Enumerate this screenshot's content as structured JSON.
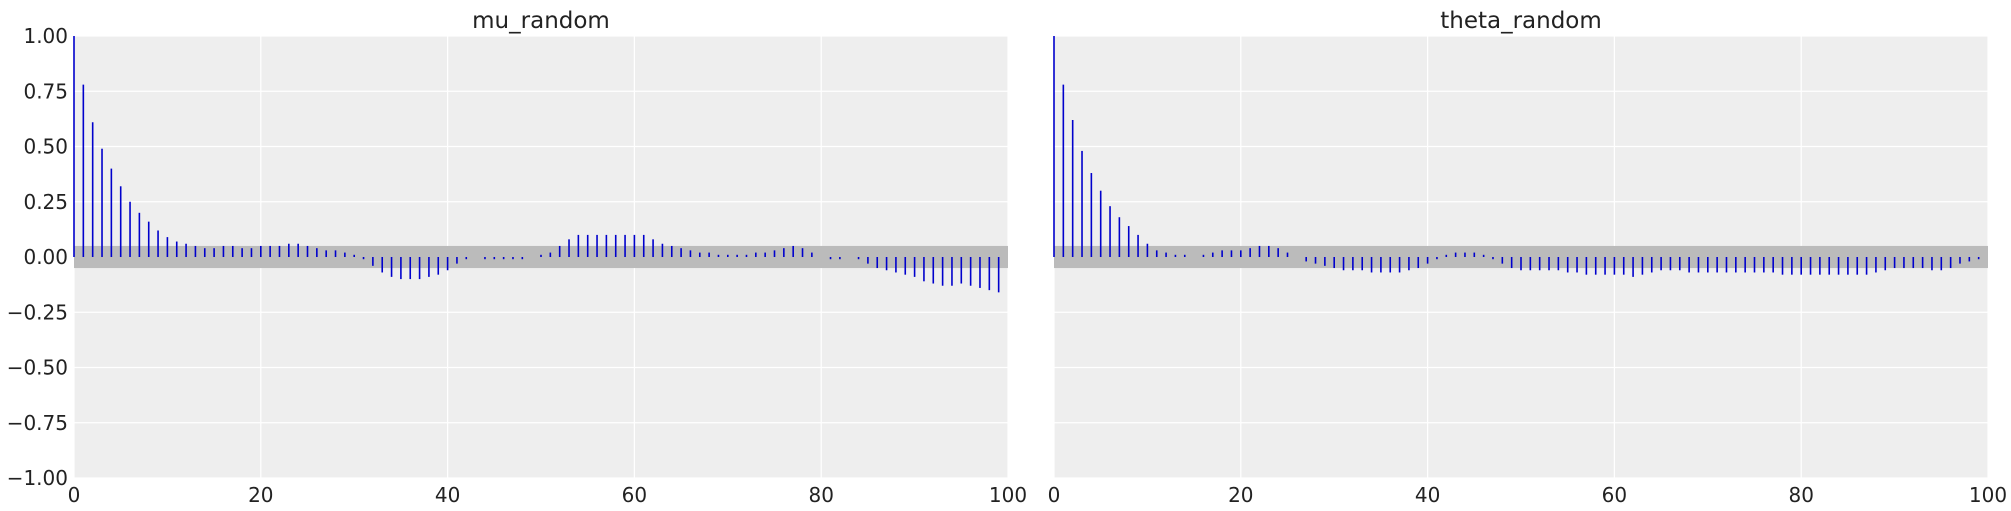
{
  "chart_data": [
    {
      "type": "bar",
      "subtype": "autocorrelation",
      "title": "mu_random",
      "xlim": [
        0,
        100
      ],
      "ylim": [
        -1.0,
        1.0
      ],
      "xticks": [
        0,
        20,
        40,
        60,
        80,
        100
      ],
      "yticks": [
        -1.0,
        -0.75,
        -0.5,
        -0.25,
        0.0,
        0.25,
        0.5,
        0.75,
        1.0
      ],
      "ytick_labels": [
        "−1.00",
        "−0.75",
        "−0.50",
        "−0.25",
        "0.00",
        "0.25",
        "0.50",
        "0.75",
        "1.00"
      ],
      "xtick_labels": [
        "0",
        "20",
        "40",
        "60",
        "80",
        "100"
      ],
      "confidence_band": [
        -0.05,
        0.05
      ],
      "grid": true,
      "x": [
        0,
        1,
        2,
        3,
        4,
        5,
        6,
        7,
        8,
        9,
        10,
        11,
        12,
        13,
        14,
        15,
        16,
        17,
        18,
        19,
        20,
        21,
        22,
        23,
        24,
        25,
        26,
        27,
        28,
        29,
        30,
        31,
        32,
        33,
        34,
        35,
        36,
        37,
        38,
        39,
        40,
        41,
        42,
        43,
        44,
        45,
        46,
        47,
        48,
        49,
        50,
        51,
        52,
        53,
        54,
        55,
        56,
        57,
        58,
        59,
        60,
        61,
        62,
        63,
        64,
        65,
        66,
        67,
        68,
        69,
        70,
        71,
        72,
        73,
        74,
        75,
        76,
        77,
        78,
        79,
        80,
        81,
        82,
        83,
        84,
        85,
        86,
        87,
        88,
        89,
        90,
        91,
        92,
        93,
        94,
        95,
        96,
        97,
        98,
        99
      ],
      "values": [
        1.0,
        0.78,
        0.61,
        0.49,
        0.4,
        0.32,
        0.25,
        0.2,
        0.16,
        0.12,
        0.09,
        0.07,
        0.06,
        0.05,
        0.04,
        0.04,
        0.05,
        0.05,
        0.04,
        0.04,
        0.05,
        0.05,
        0.05,
        0.06,
        0.06,
        0.05,
        0.04,
        0.03,
        0.03,
        0.02,
        0.01,
        -0.01,
        -0.04,
        -0.07,
        -0.09,
        -0.1,
        -0.1,
        -0.1,
        -0.09,
        -0.08,
        -0.06,
        -0.03,
        -0.01,
        0.0,
        -0.01,
        -0.01,
        -0.01,
        -0.01,
        -0.01,
        0.0,
        0.01,
        0.02,
        0.05,
        0.08,
        0.1,
        0.1,
        0.1,
        0.1,
        0.1,
        0.1,
        0.1,
        0.1,
        0.08,
        0.06,
        0.05,
        0.04,
        0.03,
        0.02,
        0.02,
        0.01,
        0.01,
        0.01,
        0.01,
        0.02,
        0.02,
        0.03,
        0.04,
        0.05,
        0.04,
        0.02,
        0.0,
        -0.01,
        -0.01,
        0.0,
        -0.01,
        -0.03,
        -0.05,
        -0.06,
        -0.07,
        -0.08,
        -0.09,
        -0.11,
        -0.12,
        -0.13,
        -0.13,
        -0.12,
        -0.13,
        -0.14,
        -0.15,
        -0.16
      ]
    },
    {
      "type": "bar",
      "subtype": "autocorrelation",
      "title": "theta_random",
      "xlim": [
        0,
        100
      ],
      "ylim": [
        -1.0,
        1.0
      ],
      "xticks": [
        0,
        20,
        40,
        60,
        80,
        100
      ],
      "xtick_labels": [
        "0",
        "20",
        "40",
        "60",
        "80",
        "100"
      ],
      "confidence_band": [
        -0.05,
        0.05
      ],
      "grid": true,
      "x": [
        0,
        1,
        2,
        3,
        4,
        5,
        6,
        7,
        8,
        9,
        10,
        11,
        12,
        13,
        14,
        15,
        16,
        17,
        18,
        19,
        20,
        21,
        22,
        23,
        24,
        25,
        26,
        27,
        28,
        29,
        30,
        31,
        32,
        33,
        34,
        35,
        36,
        37,
        38,
        39,
        40,
        41,
        42,
        43,
        44,
        45,
        46,
        47,
        48,
        49,
        50,
        51,
        52,
        53,
        54,
        55,
        56,
        57,
        58,
        59,
        60,
        61,
        62,
        63,
        64,
        65,
        66,
        67,
        68,
        69,
        70,
        71,
        72,
        73,
        74,
        75,
        76,
        77,
        78,
        79,
        80,
        81,
        82,
        83,
        84,
        85,
        86,
        87,
        88,
        89,
        90,
        91,
        92,
        93,
        94,
        95,
        96,
        97,
        98,
        99
      ],
      "values": [
        1.0,
        0.78,
        0.62,
        0.48,
        0.38,
        0.3,
        0.23,
        0.18,
        0.14,
        0.1,
        0.06,
        0.03,
        0.02,
        0.01,
        0.01,
        0.0,
        0.01,
        0.02,
        0.03,
        0.03,
        0.03,
        0.04,
        0.05,
        0.05,
        0.04,
        0.02,
        0.0,
        -0.02,
        -0.03,
        -0.04,
        -0.05,
        -0.06,
        -0.06,
        -0.06,
        -0.07,
        -0.07,
        -0.07,
        -0.07,
        -0.06,
        -0.05,
        -0.03,
        -0.01,
        0.01,
        0.02,
        0.02,
        0.02,
        0.01,
        -0.01,
        -0.03,
        -0.05,
        -0.06,
        -0.06,
        -0.06,
        -0.06,
        -0.06,
        -0.07,
        -0.07,
        -0.08,
        -0.08,
        -0.08,
        -0.08,
        -0.08,
        -0.09,
        -0.08,
        -0.07,
        -0.06,
        -0.06,
        -0.06,
        -0.07,
        -0.07,
        -0.07,
        -0.07,
        -0.07,
        -0.07,
        -0.07,
        -0.07,
        -0.07,
        -0.07,
        -0.08,
        -0.08,
        -0.08,
        -0.08,
        -0.08,
        -0.08,
        -0.08,
        -0.08,
        -0.08,
        -0.08,
        -0.07,
        -0.06,
        -0.05,
        -0.05,
        -0.05,
        -0.05,
        -0.06,
        -0.06,
        -0.05,
        -0.03,
        -0.02,
        -0.01
      ]
    }
  ],
  "colors": {
    "stem": "#0000cc",
    "band": "#bbbbbb",
    "plot_bg": "#eeeeee",
    "grid": "#ffffff",
    "text": "#222222"
  }
}
